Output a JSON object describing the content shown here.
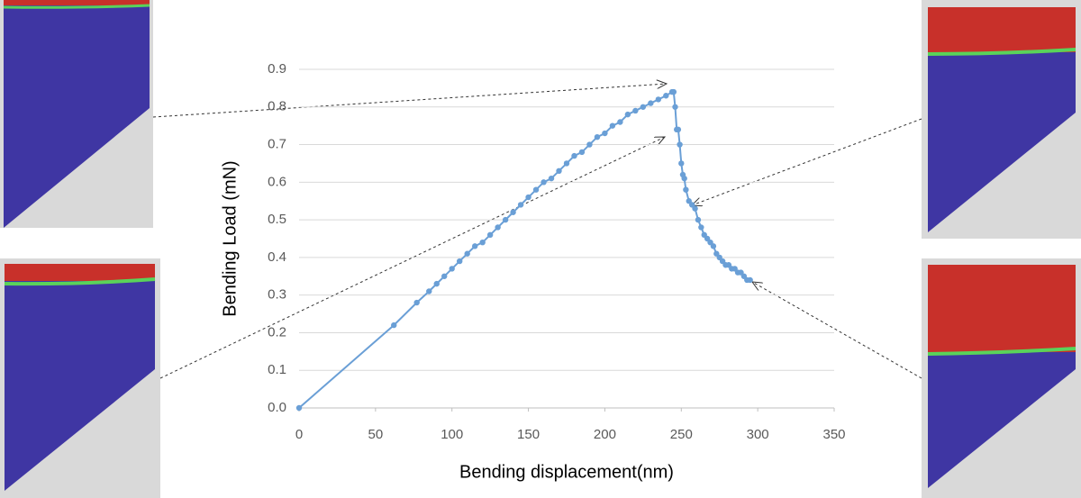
{
  "chart_data": {
    "type": "line",
    "x_label": "Bending displacement(nm)",
    "y_label": "Bending Load (mN)",
    "x": [
      0,
      62,
      77,
      85,
      90,
      95,
      100,
      105,
      110,
      115,
      120,
      125,
      130,
      135,
      140,
      145,
      150,
      155,
      160,
      165,
      170,
      175,
      180,
      185,
      190,
      195,
      200,
      205,
      210,
      215,
      220,
      225,
      230,
      235,
      240,
      244,
      245,
      246,
      247,
      248,
      249,
      250,
      251,
      252,
      253,
      255,
      257,
      259,
      261,
      263,
      265,
      267,
      269,
      271,
      273,
      275,
      277,
      279,
      281,
      283,
      285,
      287,
      289,
      291,
      293,
      295
    ],
    "values": [
      0,
      0.22,
      0.28,
      0.31,
      0.33,
      0.35,
      0.37,
      0.39,
      0.41,
      0.43,
      0.44,
      0.46,
      0.48,
      0.5,
      0.52,
      0.54,
      0.56,
      0.58,
      0.6,
      0.61,
      0.63,
      0.65,
      0.67,
      0.68,
      0.7,
      0.72,
      0.73,
      0.75,
      0.76,
      0.78,
      0.79,
      0.8,
      0.81,
      0.82,
      0.83,
      0.84,
      0.84,
      0.8,
      0.74,
      0.74,
      0.7,
      0.65,
      0.62,
      0.61,
      0.58,
      0.55,
      0.54,
      0.53,
      0.5,
      0.48,
      0.46,
      0.45,
      0.44,
      0.43,
      0.41,
      0.4,
      0.39,
      0.38,
      0.38,
      0.37,
      0.37,
      0.36,
      0.36,
      0.35,
      0.34,
      0.34
    ],
    "color": "#6a9fd6",
    "xlim": [
      0,
      350
    ],
    "xticks": [
      0,
      50,
      100,
      150,
      200,
      250,
      300,
      350
    ],
    "ylim": [
      0,
      0.9
    ],
    "yticks": [
      {
        "value": 0,
        "label": "0.0"
      },
      0.1,
      0.2,
      0.3,
      0.4,
      0.5,
      0.6,
      0.7,
      0.8,
      0.9
    ],
    "grid": true
  }
}
